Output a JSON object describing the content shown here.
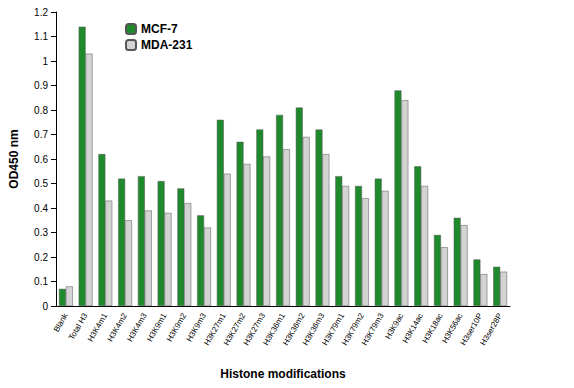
{
  "chart_data": {
    "type": "bar",
    "x_label": "Histone modifications",
    "y_label": "OD450 nm",
    "categories": [
      "Blank",
      "Total H3",
      "H3K4m1",
      "H3K4m2",
      "H3K4m3",
      "H3K9m1",
      "H3K9m2",
      "H3K9m3",
      "H3K27m1",
      "H3K27m2",
      "H3K27m3",
      "H3K36m1",
      "H3K36m2",
      "H3K36m3",
      "H3K79m1",
      "H3K79m2",
      "H3K79m3",
      "H3K9ac",
      "H3K14ac",
      "H3K18ac",
      "H3K56ac",
      "H3ser10P",
      "H3ser28P"
    ],
    "series": [
      {
        "name": "MCF-7",
        "color": "#1e8a2c",
        "values": [
          0.07,
          1.14,
          0.62,
          0.52,
          0.53,
          0.51,
          0.48,
          0.37,
          0.76,
          0.67,
          0.72,
          0.78,
          0.81,
          0.72,
          0.53,
          0.49,
          0.52,
          0.88,
          0.57,
          0.29,
          0.36,
          0.19,
          0.16
        ]
      },
      {
        "name": "MDA-231",
        "color": "#d3d3d3",
        "values": [
          0.08,
          1.03,
          0.43,
          0.35,
          0.39,
          0.38,
          0.42,
          0.32,
          0.54,
          0.58,
          0.61,
          0.64,
          0.69,
          0.62,
          0.49,
          0.44,
          0.47,
          0.84,
          0.49,
          0.24,
          0.33,
          0.13,
          0.14
        ]
      }
    ],
    "ylim": [
      0,
      1.2
    ],
    "yticks": [
      0,
      0.1,
      0.2,
      0.3,
      0.4,
      0.5,
      0.6,
      0.7,
      0.8,
      0.9,
      1,
      1.1,
      1.2
    ],
    "grid": false,
    "legend": "upper left"
  }
}
